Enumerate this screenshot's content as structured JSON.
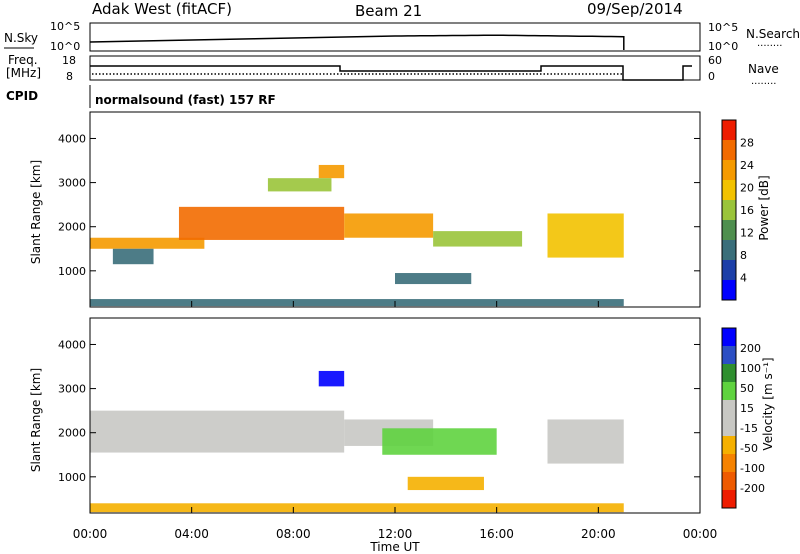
{
  "header": {
    "station": "Adak West (fitACF)",
    "beam": "Beam 21",
    "date": "09/Sep/2014"
  },
  "top_panels": {
    "sky_label": "N.Sky",
    "search_label": "N.Search",
    "freq_label_1": "Freq.",
    "freq_label_2": "[MHz]",
    "nave_label": "Nave",
    "cpid_label": "CPID",
    "cpid_text": "normalsound (fast) 157 RF",
    "noise_left_ticks": [
      "10^5",
      "10^0"
    ],
    "noise_right_ticks": [
      "10^5",
      "10^0"
    ],
    "freq_ticks": [
      "18",
      "8"
    ],
    "nave_ticks": [
      "60",
      "0"
    ],
    "dots": "........"
  },
  "colors": {
    "power_scale": [
      "#0000ff",
      "#1c3fa8",
      "#3a6e7a",
      "#4f8f4f",
      "#9ac43a",
      "#f2c200",
      "#f59a00",
      "#f26b00",
      "#ee1c00"
    ],
    "velocity_scale": [
      "#0000ff",
      "#2c4fc4",
      "#2f8f2f",
      "#5fd33f",
      "#c8c8c4",
      "#c8c8c4",
      "#f5b000",
      "#f58200",
      "#ee5a00",
      "#ee1c00"
    ]
  },
  "chart_data": [
    {
      "type": "heatmap",
      "name": "power",
      "ylabel": "Slant Range [km]",
      "xlabel": "",
      "xlim": [
        "00:00",
        "24:00"
      ],
      "ylim": [
        180,
        4600
      ],
      "yticks": [
        "4000",
        "3000",
        "2000",
        "1000"
      ],
      "xticks": [
        "00:00",
        "04:00",
        "08:00",
        "12:00",
        "16:00",
        "20:00",
        "00:00"
      ],
      "colorbar": {
        "label": "Power [dB]",
        "ticks": [
          "28",
          "24",
          "20",
          "16",
          "12",
          "8",
          "4"
        ]
      },
      "regions": [
        {
          "t0": 0.0,
          "t1": 4.5,
          "r0": 1500,
          "r1": 1750,
          "level": 24
        },
        {
          "t0": 3.5,
          "t1": 10.0,
          "r0": 1700,
          "r1": 2450,
          "level": 28
        },
        {
          "t0": 0.9,
          "t1": 2.5,
          "r0": 1150,
          "r1": 1500,
          "level": 8
        },
        {
          "t0": 10.0,
          "t1": 13.5,
          "r0": 1750,
          "r1": 2300,
          "level": 24
        },
        {
          "t0": 13.5,
          "t1": 17.0,
          "r0": 1550,
          "r1": 1900,
          "level": 16
        },
        {
          "t0": 12.0,
          "t1": 15.0,
          "r0": 700,
          "r1": 950,
          "level": 8
        },
        {
          "t0": 18.0,
          "t1": 21.0,
          "r0": 1300,
          "r1": 2300,
          "level": 20
        },
        {
          "t0": 9.0,
          "t1": 10.0,
          "r0": 3100,
          "r1": 3400,
          "level": 24
        },
        {
          "t0": 7.0,
          "t1": 9.5,
          "r0": 2800,
          "r1": 3100,
          "level": 16
        },
        {
          "t0": 0.0,
          "t1": 21.0,
          "r0": 200,
          "r1": 360,
          "level": 8
        }
      ]
    },
    {
      "type": "heatmap",
      "name": "velocity",
      "ylabel": "Slant Range [km]",
      "xlabel": "Time UT",
      "xlim": [
        "00:00",
        "24:00"
      ],
      "ylim": [
        180,
        4600
      ],
      "yticks": [
        "4000",
        "3000",
        "2000",
        "1000"
      ],
      "xticks": [
        "00:00",
        "04:00",
        "08:00",
        "12:00",
        "16:00",
        "20:00",
        "00:00"
      ],
      "colorbar": {
        "label": "Velocity [m s⁻¹]",
        "ticks": [
          "200",
          "100",
          "50",
          "15",
          "-15",
          "-50",
          "-100",
          "-200"
        ]
      },
      "regions": [
        {
          "t0": 0.0,
          "t1": 10.0,
          "r0": 1550,
          "r1": 2500,
          "level": 0
        },
        {
          "t0": 10.0,
          "t1": 13.5,
          "r0": 1700,
          "r1": 2300,
          "level": 0
        },
        {
          "t0": 11.5,
          "t1": 16.0,
          "r0": 1500,
          "r1": 2100,
          "level": 40
        },
        {
          "t0": 12.5,
          "t1": 15.5,
          "r0": 700,
          "r1": 1000,
          "level": -60
        },
        {
          "t0": 18.0,
          "t1": 21.0,
          "r0": 1300,
          "r1": 2300,
          "level": 0
        },
        {
          "t0": 9.0,
          "t1": 10.0,
          "r0": 3050,
          "r1": 3400,
          "level": 200
        },
        {
          "t0": 0.0,
          "t1": 21.0,
          "r0": 200,
          "r1": 400,
          "level": -30
        }
      ]
    }
  ]
}
